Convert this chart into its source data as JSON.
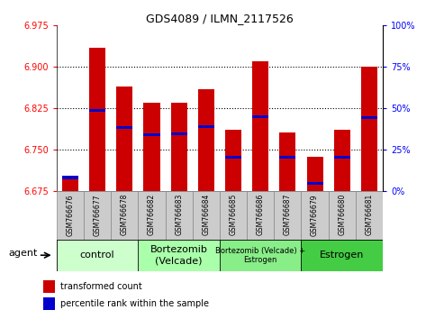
{
  "title": "GDS4089 / ILMN_2117526",
  "samples": [
    "GSM766676",
    "GSM766677",
    "GSM766678",
    "GSM766682",
    "GSM766683",
    "GSM766684",
    "GSM766685",
    "GSM766686",
    "GSM766687",
    "GSM766679",
    "GSM766680",
    "GSM766681"
  ],
  "bar_values": [
    6.7,
    6.935,
    6.865,
    6.835,
    6.836,
    6.86,
    6.787,
    6.91,
    6.782,
    6.738,
    6.787,
    6.9
  ],
  "percentile_values": [
    6.7,
    6.822,
    6.79,
    6.778,
    6.779,
    6.792,
    6.737,
    6.81,
    6.737,
    6.69,
    6.737,
    6.808
  ],
  "ymin": 6.675,
  "ymax": 6.975,
  "y_ticks": [
    6.675,
    6.75,
    6.825,
    6.9,
    6.975
  ],
  "y2_ticks": [
    0,
    25,
    50,
    75,
    100
  ],
  "bar_color": "#cc0000",
  "percentile_color": "#0000cc",
  "bar_width": 0.6,
  "groups": [
    {
      "label": "control",
      "start": 0,
      "end": 3,
      "color": "#ccffcc",
      "fontsize": 8
    },
    {
      "label": "Bortezomib\n(Velcade)",
      "start": 3,
      "end": 6,
      "color": "#aaffaa",
      "fontsize": 8
    },
    {
      "label": "Bortezomib (Velcade) +\nEstrogen",
      "start": 6,
      "end": 9,
      "color": "#88ee88",
      "fontsize": 6
    },
    {
      "label": "Estrogen",
      "start": 9,
      "end": 12,
      "color": "#44cc44",
      "fontsize": 8
    }
  ],
  "agent_label": "agent",
  "legend_red": "transformed count",
  "legend_blue": "percentile rank within the sample",
  "grid_color": "#000000",
  "xtick_bg": "#cccccc",
  "cell_border": "#888888"
}
